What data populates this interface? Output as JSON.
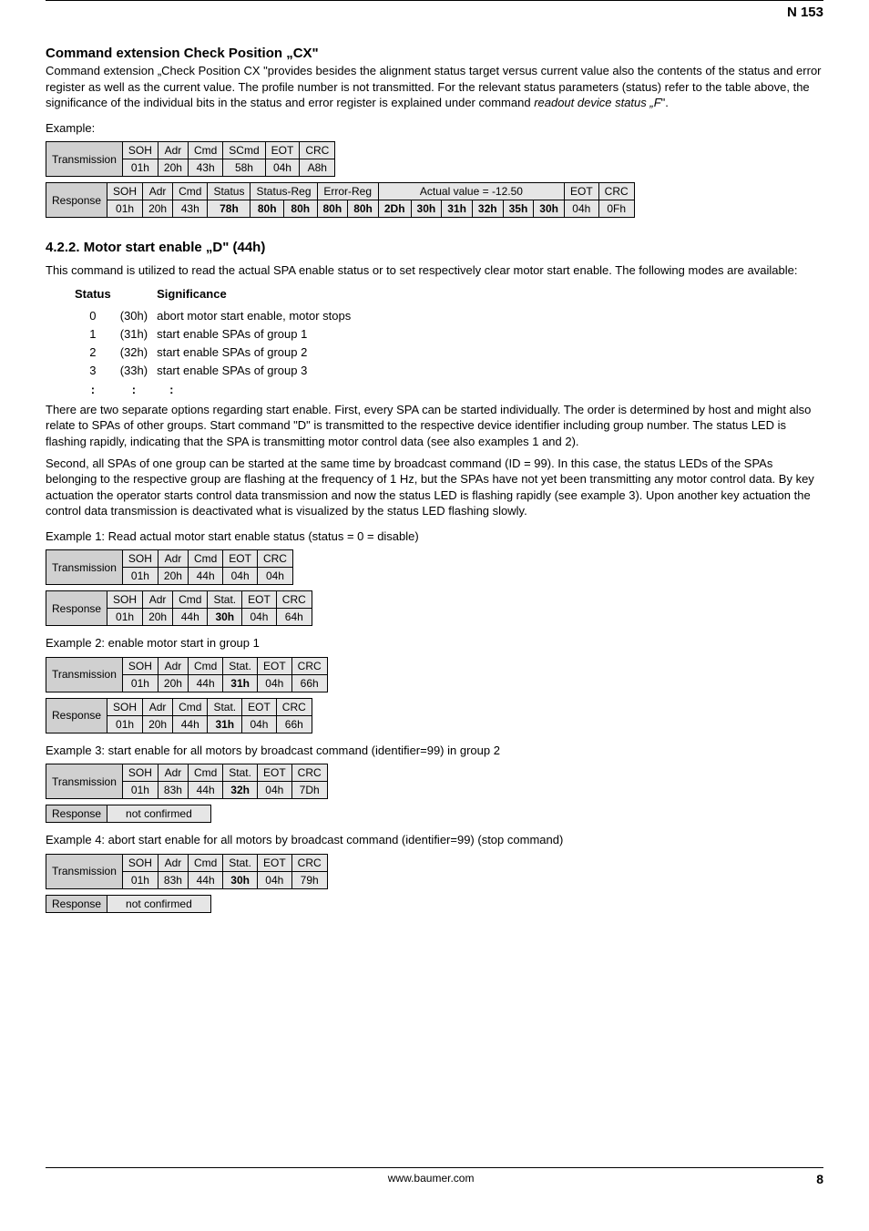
{
  "doc_id": "N 153",
  "footer_url": "www.baumer.com",
  "page_num": "8",
  "cx": {
    "title": "Command extension Check Position „CX\"",
    "para": "Command extension „Check Position CX \"provides besides the alignment status target versus current value also the contents of the status and error register as well as the current value. The profile number is not transmitted. For the relevant status parameters (status) refer to the table above, the significance of the individual bits in the status and error register is explained under command ",
    "para_italic": "readout device status „F",
    "para_tail": "\".",
    "example_label": "Example:",
    "tx": {
      "rowlabel": "Transmission",
      "headers": [
        "SOH",
        "Adr",
        "Cmd",
        "SCmd",
        "EOT",
        "CRC"
      ],
      "values": [
        "01h",
        "20h",
        "43h",
        "58h",
        "04h",
        "A8h"
      ]
    },
    "rx": {
      "rowlabel": "Response",
      "group_headers": [
        "SOH",
        "Adr",
        "Cmd",
        "Status",
        "Status-Reg",
        "Error-Reg",
        "Actual value = -12.50",
        "EOT",
        "CRC"
      ],
      "group_spans": [
        1,
        1,
        1,
        1,
        2,
        2,
        6,
        1,
        1
      ],
      "values": [
        "01h",
        "20h",
        "43h",
        "78h",
        "80h",
        "80h",
        "80h",
        "80h",
        "2Dh",
        "30h",
        "31h",
        "32h",
        "35h",
        "30h",
        "04h",
        "0Fh"
      ],
      "bold_idx": [
        3,
        4,
        5,
        6,
        7,
        8,
        9,
        10,
        11,
        12,
        13
      ]
    }
  },
  "d": {
    "title": "4.2.2. Motor start enable „D\" (44h)",
    "intro": "This command is utilized to read the actual SPA enable status or to set respectively clear motor start enable. The following modes are available:",
    "status_head": {
      "c1": "Status",
      "c3": "Significance"
    },
    "status_rows": [
      {
        "c1": "0",
        "c2": "(30h)",
        "c3": "abort motor start enable, motor stops"
      },
      {
        "c1": "1",
        "c2": "(31h)",
        "c3": "start enable SPAs of group 1"
      },
      {
        "c1": "2",
        "c2": "(32h)",
        "c3": "start enable SPAs of group 2"
      },
      {
        "c1": "3",
        "c2": "(33h)",
        "c3": "start enable SPAs of group 3"
      }
    ],
    "status_dots": {
      "c1": ":",
      "c2": ":",
      "c3": ":"
    },
    "para1": "There are two separate options regarding start enable. First, every SPA can be started individually. The order is determined by host and might also relate to SPAs of other groups. Start command \"D\" is transmitted to the respective device identifier including group number. The status LED is flashing rapidly, indicating that the SPA is transmitting motor control data (see also examples 1 and 2).",
    "para2": "Second, all SPAs of one group can be started at the same time by broadcast command (ID = 99). In this case, the status LEDs of the SPAs belonging to the respective group are flashing at the frequency of 1 Hz, but the SPAs have not yet been transmitting any motor control data. By key actuation the operator starts control data transmission and now the status LED is flashing rapidly (see example 3). Upon another key actuation the control data transmission is deactivated what is visualized by the status LED flashing slowly.",
    "ex1": {
      "label": "Example 1: Read actual motor start enable status  (status = 0 = disable)",
      "tx": {
        "rowlabel": "Transmission",
        "headers": [
          "SOH",
          "Adr",
          "Cmd",
          "EOT",
          "CRC"
        ],
        "values": [
          "01h",
          "20h",
          "44h",
          "04h",
          "04h"
        ],
        "bold_idx": []
      },
      "rx": {
        "rowlabel": "Response",
        "headers": [
          "SOH",
          "Adr",
          "Cmd",
          "Stat.",
          "EOT",
          "CRC"
        ],
        "values": [
          "01h",
          "20h",
          "44h",
          "30h",
          "04h",
          "64h"
        ],
        "bold_idx": [
          3
        ]
      }
    },
    "ex2": {
      "label": "Example 2: enable motor start in group 1",
      "tx": {
        "rowlabel": "Transmission",
        "headers": [
          "SOH",
          "Adr",
          "Cmd",
          "Stat.",
          "EOT",
          "CRC"
        ],
        "values": [
          "01h",
          "20h",
          "44h",
          "31h",
          "04h",
          "66h"
        ],
        "bold_idx": [
          3
        ]
      },
      "rx": {
        "rowlabel": "Response",
        "headers": [
          "SOH",
          "Adr",
          "Cmd",
          "Stat.",
          "EOT",
          "CRC"
        ],
        "values": [
          "01h",
          "20h",
          "44h",
          "31h",
          "04h",
          "66h"
        ],
        "bold_idx": [
          3
        ]
      }
    },
    "ex3": {
      "label": "Example 3: start enable for all motors by broadcast command (identifier=99) in group 2",
      "tx": {
        "rowlabel": "Transmission",
        "headers": [
          "SOH",
          "Adr",
          "Cmd",
          "Stat.",
          "EOT",
          "CRC"
        ],
        "values": [
          "01h",
          "83h",
          "44h",
          "32h",
          "04h",
          "7Dh"
        ],
        "bold_idx": [
          3
        ]
      },
      "rx_rowlabel": "Response",
      "rx_value": "not confirmed"
    },
    "ex4": {
      "label": "Example 4: abort start enable for all motors by broadcast command (identifier=99) (stop command)",
      "tx": {
        "rowlabel": "Transmission",
        "headers": [
          "SOH",
          "Adr",
          "Cmd",
          "Stat.",
          "EOT",
          "CRC"
        ],
        "values": [
          "01h",
          "83h",
          "44h",
          "30h",
          "04h",
          "79h"
        ],
        "bold_idx": [
          3
        ]
      },
      "rx_rowlabel": "Response",
      "rx_value": "not confirmed"
    }
  }
}
